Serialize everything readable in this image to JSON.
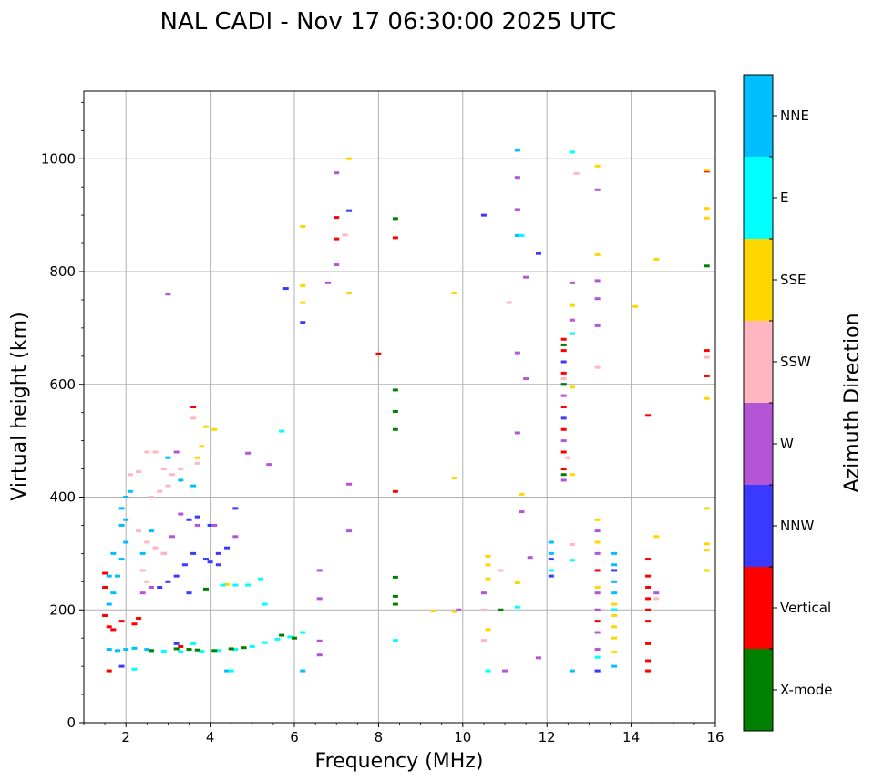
{
  "chart_data": {
    "type": "scatter",
    "title": "NAL CADI - Nov 17 06:30:00 2025 UTC",
    "xlabel": "Frequency (MHz)",
    "ylabel": "Virtual height (km)",
    "xlim": [
      1,
      16
    ],
    "ylim": [
      0,
      1120
    ],
    "xticks": [
      2,
      4,
      6,
      8,
      10,
      12,
      14,
      16
    ],
    "yticks": [
      0,
      200,
      400,
      600,
      800,
      1000
    ],
    "grid": true,
    "colorbar": {
      "label": "Azimuth Direction",
      "categories": [
        {
          "name": "X-mode",
          "color": "#008000"
        },
        {
          "name": "Vertical",
          "color": "#ff0000"
        },
        {
          "name": "NNW",
          "color": "#3a3aff"
        },
        {
          "name": "W",
          "color": "#b455d6"
        },
        {
          "name": "SSW",
          "color": "#ffb6c1"
        },
        {
          "name": "SSE",
          "color": "#ffd700"
        },
        {
          "name": "E",
          "color": "#00ffff"
        },
        {
          "name": "NNE",
          "color": "#00bfff"
        }
      ]
    },
    "series": [
      {
        "color": "#00bfff",
        "points": [
          [
            1.6,
            130
          ],
          [
            1.8,
            128
          ],
          [
            2.0,
            130
          ],
          [
            2.2,
            132
          ],
          [
            2.5,
            130
          ],
          [
            1.5,
            190
          ],
          [
            1.6,
            210
          ],
          [
            1.7,
            230
          ],
          [
            1.8,
            260
          ],
          [
            1.9,
            290
          ],
          [
            2.0,
            320
          ],
          [
            2.0,
            360
          ],
          [
            2.0,
            400
          ],
          [
            2.1,
            410
          ],
          [
            1.6,
            260
          ],
          [
            1.7,
            300
          ],
          [
            1.9,
            350
          ],
          [
            1.9,
            380
          ],
          [
            2.4,
            300
          ],
          [
            2.6,
            340
          ],
          [
            3.3,
            430
          ],
          [
            3.6,
            420
          ],
          [
            3.0,
            470
          ],
          [
            11.3,
            1015
          ],
          [
            12.1,
            320
          ],
          [
            12.1,
            300
          ],
          [
            13.6,
            300
          ],
          [
            13.6,
            280
          ],
          [
            13.6,
            250
          ],
          [
            13.6,
            230
          ],
          [
            13.6,
            100
          ],
          [
            12.6,
            92
          ],
          [
            13.2,
            92
          ],
          [
            6.2,
            92
          ],
          [
            4.4,
            92
          ],
          [
            11.3,
            864
          ]
        ]
      },
      {
        "color": "#ff0000",
        "points": [
          [
            1.5,
            265
          ],
          [
            1.5,
            240
          ],
          [
            1.5,
            190
          ],
          [
            1.6,
            170
          ],
          [
            1.7,
            165
          ],
          [
            1.9,
            180
          ],
          [
            2.2,
            175
          ],
          [
            2.3,
            185
          ],
          [
            1.6,
            92
          ],
          [
            7.0,
            896
          ],
          [
            7.0,
            858
          ],
          [
            8.0,
            654
          ],
          [
            8.4,
            860
          ],
          [
            8.4,
            410
          ],
          [
            12.4,
            680
          ],
          [
            12.4,
            660
          ],
          [
            12.4,
            620
          ],
          [
            12.4,
            560
          ],
          [
            12.4,
            520
          ],
          [
            12.4,
            480
          ],
          [
            12.4,
            450
          ],
          [
            13.2,
            270
          ],
          [
            13.2,
            180
          ],
          [
            14.4,
            290
          ],
          [
            14.4,
            260
          ],
          [
            14.4,
            240
          ],
          [
            14.4,
            220
          ],
          [
            14.4,
            200
          ],
          [
            14.4,
            180
          ],
          [
            14.4,
            140
          ],
          [
            14.4,
            110
          ],
          [
            14.4,
            92
          ],
          [
            14.4,
            545
          ],
          [
            15.8,
            978
          ],
          [
            15.8,
            660
          ],
          [
            15.8,
            615
          ],
          [
            3.3,
            135
          ],
          [
            3.6,
            560
          ]
        ]
      },
      {
        "color": "#3a3aff",
        "points": [
          [
            3.0,
            250
          ],
          [
            3.2,
            260
          ],
          [
            3.4,
            280
          ],
          [
            3.6,
            300
          ],
          [
            4.0,
            285
          ],
          [
            4.2,
            300
          ],
          [
            4.4,
            310
          ],
          [
            2.8,
            240
          ],
          [
            3.5,
            360
          ],
          [
            3.7,
            365
          ],
          [
            4.0,
            350
          ],
          [
            3.5,
            230
          ],
          [
            12.1,
            290
          ],
          [
            12.1,
            260
          ],
          [
            12.4,
            640
          ],
          [
            12.4,
            600
          ],
          [
            12.4,
            540
          ],
          [
            13.6,
            270
          ],
          [
            13.6,
            200
          ],
          [
            13.2,
            92
          ],
          [
            10.5,
            900
          ],
          [
            11.8,
            832
          ],
          [
            5.8,
            770
          ],
          [
            6.2,
            710
          ],
          [
            7.3,
            908
          ],
          [
            4.6,
            380
          ],
          [
            3.2,
            140
          ],
          [
            3.9,
            290
          ],
          [
            4.2,
            280
          ],
          [
            1.9,
            100
          ]
        ]
      },
      {
        "color": "#b455d6",
        "points": [
          [
            2.4,
            230
          ],
          [
            2.6,
            240
          ],
          [
            2.9,
            300
          ],
          [
            3.1,
            330
          ],
          [
            3.3,
            370
          ],
          [
            3.7,
            350
          ],
          [
            4.1,
            350
          ],
          [
            4.6,
            330
          ],
          [
            3.0,
            760
          ],
          [
            7.0,
            975
          ],
          [
            7.0,
            812
          ],
          [
            6.8,
            780
          ],
          [
            6.6,
            270
          ],
          [
            6.6,
            220
          ],
          [
            6.6,
            145
          ],
          [
            6.6,
            120
          ],
          [
            11.3,
            967
          ],
          [
            11.3,
            910
          ],
          [
            11.3,
            656
          ],
          [
            11.3,
            514
          ],
          [
            11.5,
            790
          ],
          [
            11.5,
            610
          ],
          [
            11.4,
            374
          ],
          [
            12.6,
            780
          ],
          [
            12.6,
            714
          ],
          [
            12.6,
            690
          ],
          [
            13.2,
            945
          ],
          [
            13.2,
            784
          ],
          [
            13.2,
            752
          ],
          [
            13.2,
            704
          ],
          [
            13.2,
            340
          ],
          [
            13.2,
            300
          ],
          [
            13.2,
            230
          ],
          [
            13.2,
            200
          ],
          [
            13.2,
            160
          ],
          [
            13.2,
            130
          ],
          [
            12.4,
            580
          ],
          [
            12.4,
            500
          ],
          [
            12.4,
            430
          ],
          [
            14.6,
            230
          ],
          [
            10.5,
            230
          ],
          [
            11.0,
            92
          ],
          [
            11.8,
            115
          ],
          [
            9.9,
            200
          ],
          [
            11.6,
            293
          ],
          [
            7.3,
            423
          ],
          [
            7.3,
            340
          ],
          [
            5.4,
            458
          ],
          [
            4.9,
            478
          ],
          [
            3.2,
            480
          ]
        ]
      },
      {
        "color": "#ffb6c1",
        "points": [
          [
            2.1,
            440
          ],
          [
            2.3,
            445
          ],
          [
            2.5,
            480
          ],
          [
            2.7,
            480
          ],
          [
            2.9,
            450
          ],
          [
            2.6,
            400
          ],
          [
            2.8,
            410
          ],
          [
            3.0,
            420
          ],
          [
            3.1,
            440
          ],
          [
            3.3,
            450
          ],
          [
            3.7,
            460
          ],
          [
            2.3,
            340
          ],
          [
            2.5,
            320
          ],
          [
            2.7,
            310
          ],
          [
            2.9,
            300
          ],
          [
            2.4,
            270
          ],
          [
            2.5,
            250
          ],
          [
            3.6,
            540
          ],
          [
            12.7,
            974
          ],
          [
            13.2,
            630
          ],
          [
            15.8,
            648
          ],
          [
            11.1,
            745
          ],
          [
            12.4,
            610
          ],
          [
            12.6,
            316
          ],
          [
            10.5,
            200
          ],
          [
            10.5,
            146
          ],
          [
            10.9,
            270
          ],
          [
            12.5,
            470
          ],
          [
            7.2,
            865
          ],
          [
            14.6,
            220
          ]
        ]
      },
      {
        "color": "#ffd700",
        "points": [
          [
            3.9,
            525
          ],
          [
            3.8,
            490
          ],
          [
            3.7,
            470
          ],
          [
            4.1,
            520
          ],
          [
            6.2,
            880
          ],
          [
            6.2,
            775
          ],
          [
            6.2,
            745
          ],
          [
            7.3,
            1000
          ],
          [
            7.3,
            762
          ],
          [
            9.8,
            762
          ],
          [
            9.8,
            434
          ],
          [
            9.8,
            197
          ],
          [
            9.3,
            198
          ],
          [
            10.6,
            295
          ],
          [
            10.6,
            280
          ],
          [
            10.6,
            255
          ],
          [
            10.6,
            165
          ],
          [
            11.3,
            248
          ],
          [
            11.4,
            405
          ],
          [
            12.6,
            740
          ],
          [
            12.6,
            595
          ],
          [
            12.6,
            440
          ],
          [
            13.2,
            987
          ],
          [
            13.2,
            830
          ],
          [
            13.2,
            360
          ],
          [
            13.2,
            320
          ],
          [
            13.2,
            240
          ],
          [
            13.6,
            210
          ],
          [
            13.6,
            190
          ],
          [
            13.6,
            170
          ],
          [
            13.6,
            150
          ],
          [
            13.6,
            125
          ],
          [
            14.1,
            738
          ],
          [
            14.6,
            822
          ],
          [
            14.6,
            330
          ],
          [
            15.8,
            980
          ],
          [
            15.8,
            912
          ],
          [
            15.8,
            895
          ],
          [
            15.8,
            575
          ],
          [
            15.8,
            380
          ],
          [
            15.8,
            317
          ],
          [
            15.8,
            306
          ],
          [
            15.8,
            270
          ],
          [
            4.4,
            245
          ]
        ]
      },
      {
        "color": "#00ffff",
        "points": [
          [
            2.6,
            128
          ],
          [
            2.9,
            127
          ],
          [
            3.3,
            126
          ],
          [
            3.8,
            127
          ],
          [
            4.2,
            128
          ],
          [
            4.6,
            130
          ],
          [
            5.0,
            135
          ],
          [
            5.3,
            142
          ],
          [
            5.6,
            148
          ],
          [
            5.9,
            152
          ],
          [
            6.2,
            160
          ],
          [
            4.5,
            92
          ],
          [
            4.3,
            244
          ],
          [
            4.6,
            244
          ],
          [
            4.9,
            244
          ],
          [
            5.2,
            255
          ],
          [
            5.3,
            210
          ],
          [
            5.7,
            517
          ],
          [
            8.4,
            146
          ],
          [
            10.6,
            92
          ],
          [
            11.3,
            205
          ],
          [
            12.6,
            1012
          ],
          [
            12.6,
            690
          ],
          [
            12.6,
            288
          ],
          [
            13.2,
            116
          ],
          [
            13.6,
            200
          ],
          [
            12.1,
            270
          ],
          [
            11.4,
            864
          ],
          [
            3.6,
            140
          ],
          [
            2.2,
            95
          ]
        ]
      },
      {
        "color": "#008000",
        "points": [
          [
            3.2,
            131
          ],
          [
            3.5,
            130
          ],
          [
            3.7,
            129
          ],
          [
            4.1,
            128
          ],
          [
            4.5,
            131
          ],
          [
            4.8,
            133
          ],
          [
            5.7,
            155
          ],
          [
            6.0,
            150
          ],
          [
            8.4,
            894
          ],
          [
            8.4,
            590
          ],
          [
            8.4,
            552
          ],
          [
            8.4,
            520
          ],
          [
            8.4,
            258
          ],
          [
            8.4,
            210
          ],
          [
            8.4,
            224
          ],
          [
            10.9,
            200
          ],
          [
            12.4,
            670
          ],
          [
            12.4,
            600
          ],
          [
            12.4,
            440
          ],
          [
            15.8,
            810
          ],
          [
            3.9,
            237
          ],
          [
            2.6,
            128
          ]
        ]
      }
    ]
  }
}
